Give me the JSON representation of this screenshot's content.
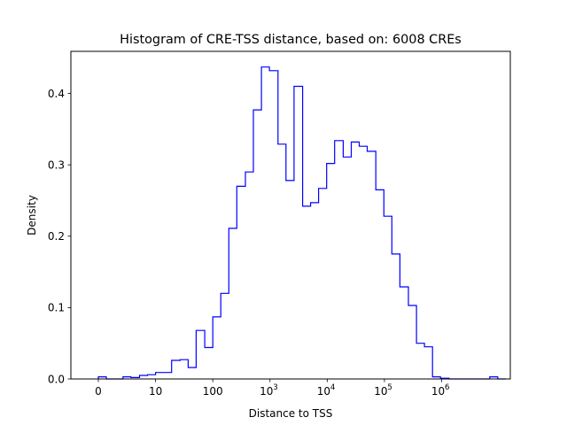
{
  "chart_data": {
    "type": "histogram",
    "title": "Histogram of CRE-TSS distance, based on: 6008 CREs",
    "xlabel": "Distance to TSS",
    "ylabel": "Density",
    "x_scale": "symlog",
    "xlim": [
      -0.48,
      7.2
    ],
    "ylim": [
      0,
      0.459
    ],
    "line_color": "#0000ff",
    "x_ticks": [
      {
        "value": 0,
        "base": "0",
        "exp": ""
      },
      {
        "value": 1,
        "base": "10",
        "exp": ""
      },
      {
        "value": 2,
        "base": "100",
        "exp": ""
      },
      {
        "value": 3,
        "base": "10",
        "exp": "3"
      },
      {
        "value": 4,
        "base": "10",
        "exp": "4"
      },
      {
        "value": 5,
        "base": "10",
        "exp": "5"
      },
      {
        "value": 6,
        "base": "10",
        "exp": "6"
      }
    ],
    "y_ticks": [
      {
        "value": 0.0,
        "label": "0.0"
      },
      {
        "value": 0.1,
        "label": "0.1"
      },
      {
        "value": 0.2,
        "label": "0.2"
      },
      {
        "value": 0.3,
        "label": "0.3"
      },
      {
        "value": 0.4,
        "label": "0.4"
      }
    ],
    "bin_edges": [
      0.0,
      0.14,
      0.29,
      0.43,
      0.57,
      0.72,
      0.86,
      1.0,
      1.14,
      1.28,
      1.43,
      1.57,
      1.71,
      1.86,
      2.0,
      2.14,
      2.28,
      2.42,
      2.57,
      2.71,
      2.85,
      2.99,
      3.14,
      3.28,
      3.42,
      3.57,
      3.71,
      3.85,
      3.99,
      4.13,
      4.28,
      4.42,
      4.56,
      4.7,
      4.85,
      4.99,
      5.13,
      5.27,
      5.42,
      5.56,
      5.7,
      5.84,
      5.98,
      6.13,
      6.27,
      6.41,
      6.55,
      6.7,
      6.84,
      6.98,
      7.12
    ],
    "density": [
      0.003,
      0.0,
      0.0,
      0.003,
      0.002,
      0.005,
      0.006,
      0.009,
      0.009,
      0.026,
      0.027,
      0.016,
      0.068,
      0.044,
      0.087,
      0.12,
      0.211,
      0.27,
      0.29,
      0.377,
      0.437,
      0.432,
      0.329,
      0.278,
      0.41,
      0.242,
      0.247,
      0.267,
      0.302,
      0.334,
      0.311,
      0.332,
      0.326,
      0.319,
      0.265,
      0.228,
      0.175,
      0.129,
      0.103,
      0.05,
      0.045,
      0.003,
      0.001,
      0.0,
      0.0,
      0.0,
      0.0,
      0.0,
      0.003,
      0.0
    ]
  }
}
